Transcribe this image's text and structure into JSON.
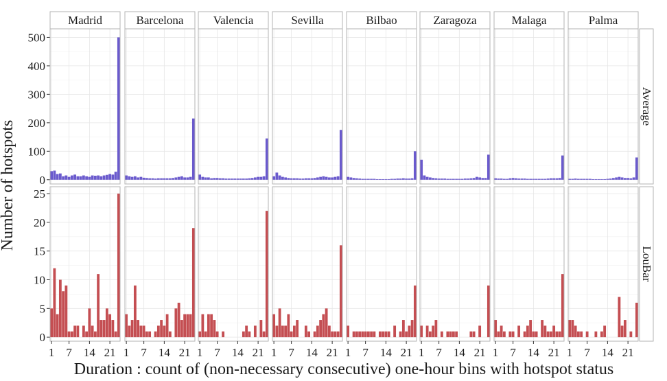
{
  "chart_data": {
    "type": "bar",
    "layout": "facet-grid",
    "xlabel": "Duration : count of (non-necessary consecutive) one-hour bins with hotspot status",
    "ylabel": "Number of hotspots",
    "cities": [
      "Madrid",
      "Barcelona",
      "Valencia",
      "Sevilla",
      "Bilbao",
      "Zaragoza",
      "Malaga",
      "Palma"
    ],
    "x": [
      1,
      2,
      3,
      4,
      5,
      6,
      7,
      8,
      9,
      10,
      11,
      12,
      13,
      14,
      15,
      16,
      17,
      18,
      19,
      20,
      21,
      22,
      23,
      24
    ],
    "x_ticks": [
      1,
      7,
      14,
      21
    ],
    "xlim": [
      0.5,
      24.5
    ],
    "grid": true,
    "rows": [
      {
        "name": "Average",
        "color": "#6a5acd",
        "ylim": [
          -15,
          530
        ],
        "y_ticks": [
          0,
          100,
          200,
          300,
          400,
          500
        ],
        "values": {
          "Madrid": [
            30,
            32,
            20,
            22,
            12,
            15,
            10,
            15,
            18,
            12,
            12,
            15,
            12,
            10,
            15,
            14,
            15,
            12,
            15,
            17,
            20,
            18,
            28,
            500
          ],
          "Barcelona": [
            15,
            12,
            10,
            12,
            8,
            10,
            7,
            6,
            5,
            5,
            4,
            5,
            5,
            5,
            5,
            5,
            6,
            8,
            10,
            12,
            8,
            8,
            10,
            215
          ],
          "Valencia": [
            18,
            10,
            8,
            8,
            5,
            6,
            6,
            5,
            5,
            4,
            4,
            4,
            4,
            4,
            4,
            4,
            4,
            5,
            6,
            8,
            10,
            10,
            12,
            145
          ],
          "Sevilla": [
            12,
            25,
            15,
            10,
            8,
            6,
            5,
            5,
            5,
            4,
            4,
            5,
            5,
            5,
            6,
            8,
            10,
            12,
            10,
            8,
            8,
            10,
            12,
            175
          ],
          "Bilbao": [
            10,
            8,
            6,
            5,
            4,
            3,
            3,
            3,
            3,
            3,
            2,
            2,
            2,
            2,
            2,
            3,
            3,
            4,
            4,
            5,
            4,
            4,
            5,
            100
          ],
          "Zaragoza": [
            70,
            15,
            10,
            8,
            6,
            5,
            4,
            4,
            4,
            3,
            3,
            3,
            3,
            3,
            3,
            4,
            4,
            5,
            6,
            10,
            8,
            6,
            6,
            88
          ],
          "Malaga": [
            5,
            4,
            4,
            3,
            3,
            5,
            6,
            5,
            4,
            4,
            4,
            3,
            3,
            3,
            3,
            3,
            3,
            3,
            4,
            5,
            5,
            5,
            6,
            85
          ],
          "Palma": [
            3,
            3,
            4,
            3,
            3,
            3,
            3,
            3,
            2,
            2,
            2,
            2,
            2,
            3,
            4,
            6,
            8,
            10,
            8,
            6,
            6,
            5,
            8,
            78
          ]
        }
      },
      {
        "name": "LouBar",
        "color": "#c44e52",
        "ylim": [
          -0.7,
          26.2
        ],
        "y_ticks": [
          0,
          5,
          10,
          15,
          20,
          25
        ],
        "values": {
          "Madrid": [
            5,
            12,
            4,
            10,
            8,
            9,
            1,
            1,
            2,
            2,
            0,
            2,
            1,
            5,
            2,
            1,
            11,
            3,
            3,
            5,
            4,
            3,
            1,
            25
          ],
          "Barcelona": [
            4,
            2,
            3,
            9,
            3,
            2,
            2,
            1,
            1,
            0,
            1,
            2,
            3,
            2,
            4,
            1,
            0,
            5,
            6,
            3,
            4,
            4,
            4,
            19
          ],
          "Valencia": [
            1,
            4,
            1,
            4,
            4,
            3,
            1,
            0,
            1,
            0,
            0,
            0,
            0,
            0,
            0,
            1,
            2,
            1,
            0,
            2,
            0,
            3,
            1,
            22
          ],
          "Sevilla": [
            4,
            2,
            5,
            2,
            2,
            4,
            1,
            2,
            3,
            0,
            0,
            2,
            1,
            0,
            1,
            2,
            3,
            4,
            5,
            2,
            1,
            1,
            1,
            16
          ],
          "Bilbao": [
            2,
            0,
            1,
            1,
            1,
            1,
            1,
            1,
            1,
            1,
            0,
            1,
            1,
            1,
            1,
            0,
            2,
            0,
            1,
            3,
            1,
            2,
            3,
            9
          ],
          "Zaragoza": [
            2,
            0,
            2,
            1,
            2,
            3,
            0,
            1,
            0,
            1,
            1,
            1,
            1,
            0,
            0,
            0,
            0,
            1,
            1,
            0,
            2,
            0,
            0,
            9
          ],
          "Malaga": [
            3,
            1,
            2,
            1,
            0,
            1,
            1,
            0,
            2,
            0,
            1,
            2,
            3,
            1,
            1,
            0,
            3,
            2,
            1,
            1,
            2,
            1,
            1,
            11
          ],
          "Palma": [
            3,
            3,
            2,
            1,
            1,
            0,
            1,
            0,
            0,
            1,
            0,
            1,
            2,
            0,
            0,
            0,
            0,
            7,
            2,
            3,
            0,
            1,
            0,
            6
          ]
        }
      }
    ]
  }
}
